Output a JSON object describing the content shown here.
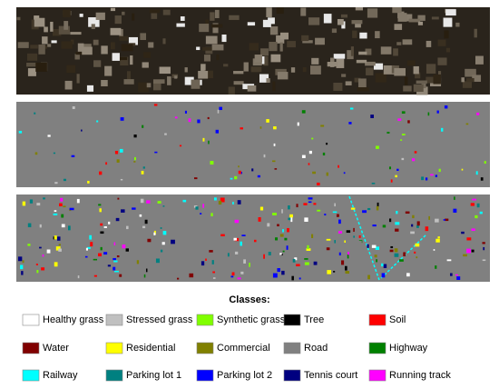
{
  "legend": {
    "title": "Classes:",
    "items": [
      {
        "label": "Healthy grass",
        "color": "#ffffff"
      },
      {
        "label": "Stressed grass",
        "color": "#c0c0c0"
      },
      {
        "label": "Synthetic grass",
        "color": "#80ff00"
      },
      {
        "label": "Tree",
        "color": "#000000"
      },
      {
        "label": "Soil",
        "color": "#ff0000"
      },
      {
        "label": "Water",
        "color": "#800000"
      },
      {
        "label": "Residential",
        "color": "#ffff00"
      },
      {
        "label": "Commercial",
        "color": "#808000"
      },
      {
        "label": "Road",
        "color": "#808080"
      },
      {
        "label": "Highway",
        "color": "#008000"
      },
      {
        "label": "Railway",
        "color": "#00ffff"
      },
      {
        "label": "Parking lot 1",
        "color": "#008080"
      },
      {
        "label": "Parking lot 2",
        "color": "#0000ff"
      },
      {
        "label": "Tennis court",
        "color": "#000080"
      },
      {
        "label": "Running track",
        "color": "#ff00ff"
      }
    ]
  }
}
